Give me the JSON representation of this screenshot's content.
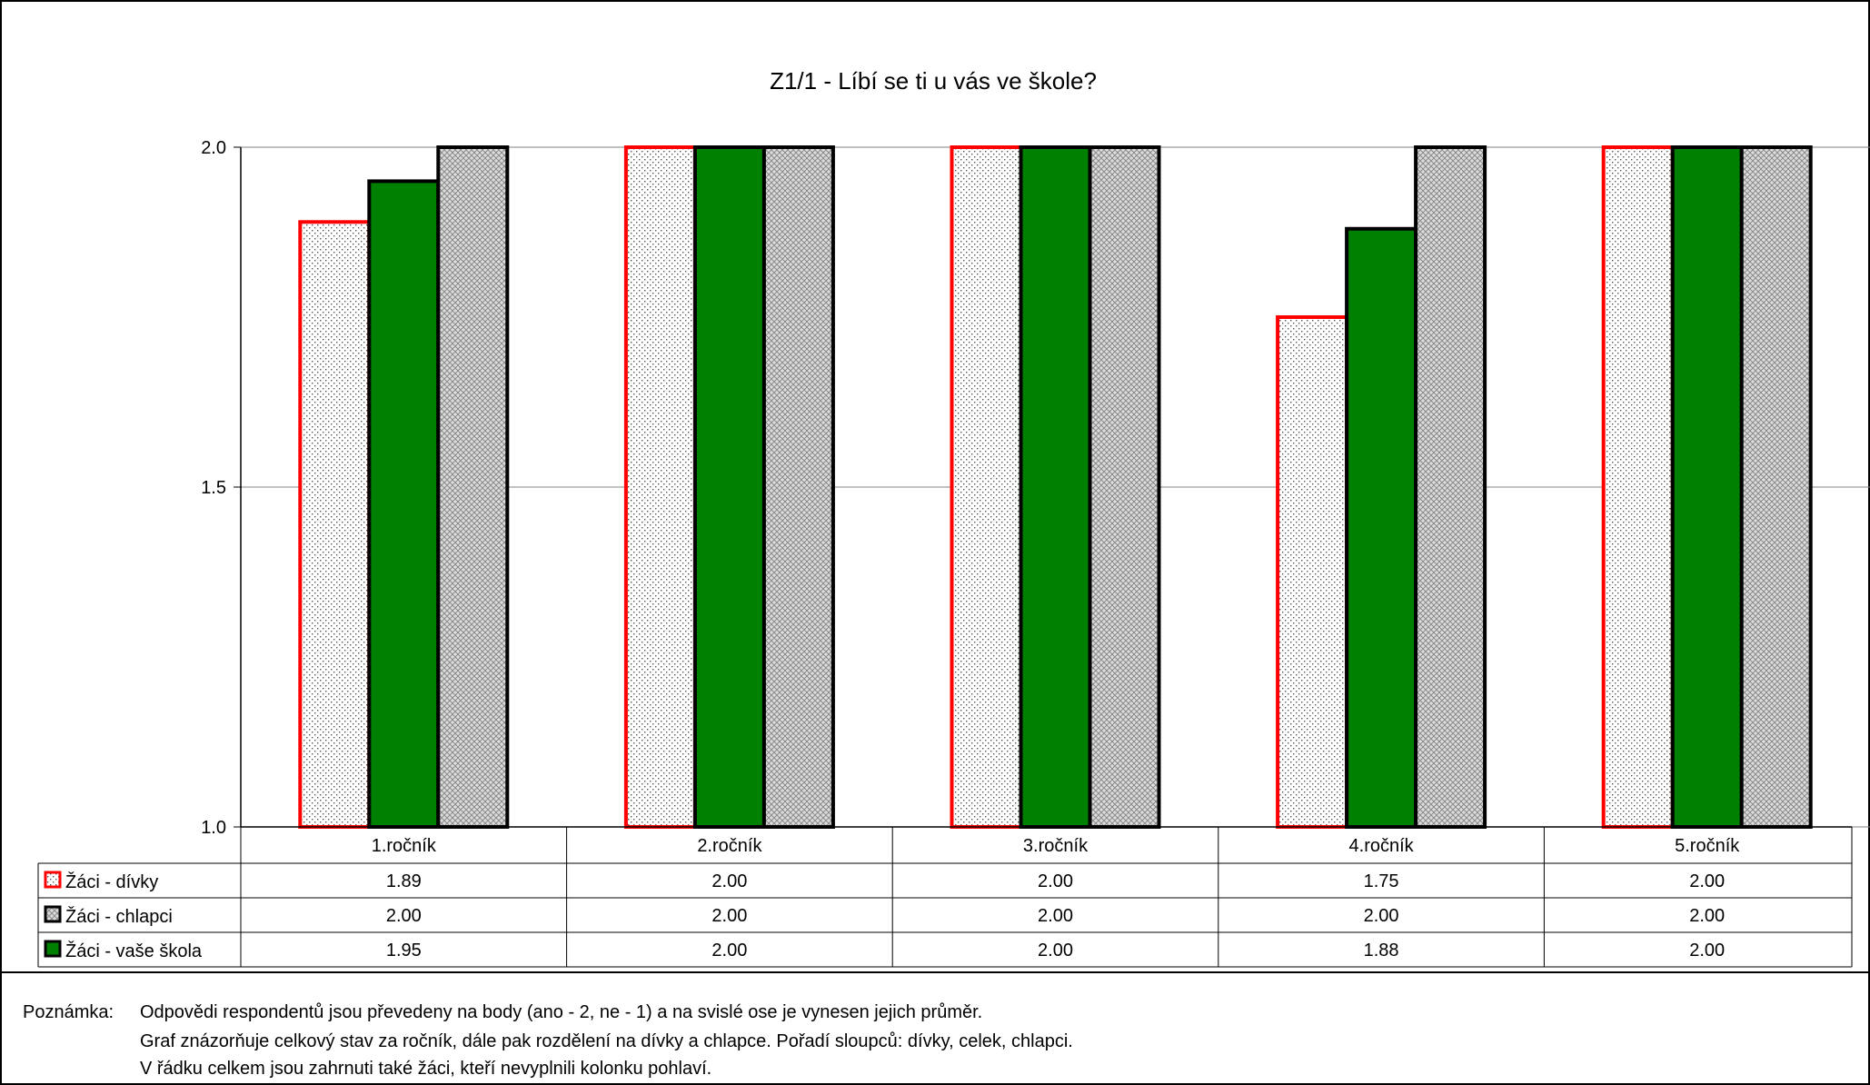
{
  "chart_data": {
    "type": "bar",
    "title": "Z1/1 - Líbí se ti u vás ve škole?",
    "xlabel": "",
    "ylabel": "",
    "ylim": [
      1.0,
      2.0
    ],
    "yticks": [
      "1.0",
      "1.5",
      "2.0"
    ],
    "categories": [
      "1.ročník",
      "2.ročník",
      "3.ročník",
      "4.ročník",
      "5.ročník"
    ],
    "bar_order": [
      "Žáci - dívky",
      "Žáci - vaše škola",
      "Žáci - chlapci"
    ],
    "grid": true,
    "legend": "data-table",
    "series": [
      {
        "name": "Žáci - dívky",
        "values": [
          1.89,
          2.0,
          2.0,
          1.75,
          2.0
        ],
        "labels": [
          "1.89",
          "2.00",
          "2.00",
          "1.75",
          "2.00"
        ],
        "fill": "#ffffff",
        "border": "#ff0000",
        "pattern": "dots"
      },
      {
        "name": "Žáci - chlapci",
        "values": [
          2.0,
          2.0,
          2.0,
          2.0,
          2.0
        ],
        "labels": [
          "2.00",
          "2.00",
          "2.00",
          "2.00",
          "2.00"
        ],
        "fill": "#d9d9d9",
        "border": "#000000",
        "pattern": "crosshatch"
      },
      {
        "name": "Žáci - vaše škola",
        "values": [
          1.95,
          2.0,
          2.0,
          1.88,
          2.0
        ],
        "labels": [
          "1.95",
          "2.00",
          "2.00",
          "1.88",
          "2.00"
        ],
        "fill": "#008000",
        "border": "#000000",
        "pattern": "solid"
      }
    ]
  },
  "note": {
    "label": "Poznámka:",
    "lines": [
      "Odpovědi respondentů jsou převedeny na body (ano - 2, ne - 1) a na svislé ose je vynesen jejich průměr.",
      "Graf znázorňuje celkový stav za ročník, dále pak rozdělení na dívky a chlapce. Pořadí sloupců: dívky, celek, chlapci.",
      "V řádku celkem jsou zahrnuti také žáci, kteří nevyplnili kolonku pohlaví."
    ]
  }
}
